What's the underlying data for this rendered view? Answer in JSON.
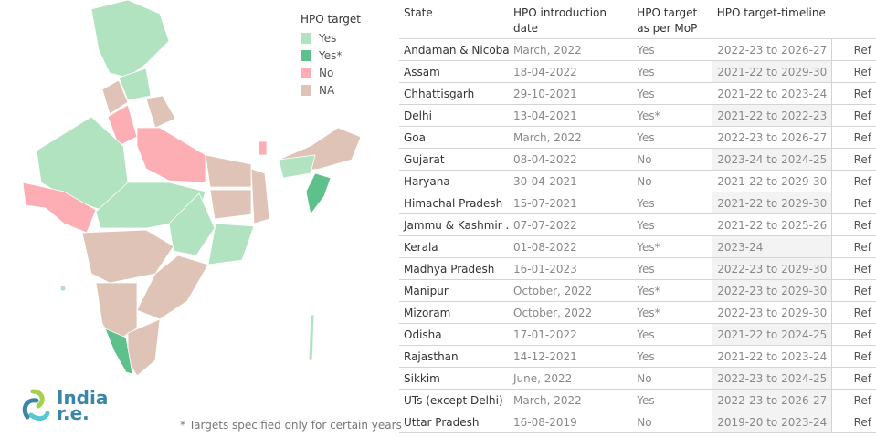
{
  "legend": {
    "title": "HPO target",
    "items": [
      {
        "label": "Yes",
        "color": "#b2e3c0"
      },
      {
        "label": "Yes*",
        "color": "#5ec08a"
      },
      {
        "label": "No",
        "color": "#fdadb4"
      },
      {
        "label": "NA",
        "color": "#dfc3b6"
      }
    ]
  },
  "footnote": "* Targets specified only for certain years",
  "logo": {
    "line1": "India",
    "line2": "r.e."
  },
  "table": {
    "headers": [
      "State",
      "HPO introduction date",
      "HPO target as per MoP",
      "HPO target-timeline",
      ""
    ],
    "rows": [
      {
        "state": "Andaman & Nicobar",
        "date": "March, 2022",
        "mop": "Yes",
        "timeline": "2022-23 to 2026-27",
        "ref": "Ref",
        "shaded": false
      },
      {
        "state": "Assam",
        "date": "18-04-2022",
        "mop": "Yes",
        "timeline": "2021-22 to 2029-30",
        "ref": "Ref",
        "shaded": true
      },
      {
        "state": "Chhattisgarh",
        "date": "29-10-2021",
        "mop": "Yes",
        "timeline": "2021-22 to 2023-24",
        "ref": "Ref",
        "shaded": false
      },
      {
        "state": "Delhi",
        "date": "13-04-2021",
        "mop": "Yes*",
        "timeline": "2021-22 to 2022-23",
        "ref": "Ref",
        "shaded": true
      },
      {
        "state": "Goa",
        "date": "March, 2022",
        "mop": "Yes",
        "timeline": "2022-23 to 2026-27",
        "ref": "Ref",
        "shaded": false
      },
      {
        "state": "Gujarat",
        "date": "08-04-2022",
        "mop": "No",
        "timeline": "2023-24 to 2024-25",
        "ref": "Ref",
        "shaded": true
      },
      {
        "state": "Haryana",
        "date": "30-04-2021",
        "mop": "No",
        "timeline": "2021-22 to 2029-30",
        "ref": "Ref",
        "shaded": false
      },
      {
        "state": "Himachal Pradesh",
        "date": "15-07-2021",
        "mop": "Yes",
        "timeline": "2021-22 to 2029-30",
        "ref": "Ref",
        "shaded": true
      },
      {
        "state": "Jammu & Kashmir ..",
        "date": "07-07-2022",
        "mop": "Yes",
        "timeline": "2021-22 to 2025-26",
        "ref": "Ref",
        "shaded": false
      },
      {
        "state": "Kerala",
        "date": "01-08-2022",
        "mop": "Yes*",
        "timeline": "2023-24",
        "ref": "Ref",
        "shaded": true
      },
      {
        "state": "Madhya Pradesh",
        "date": "16-01-2023",
        "mop": "Yes",
        "timeline": "2022-23 to 2029-30",
        "ref": "Ref",
        "shaded": true
      },
      {
        "state": "Manipur",
        "date": "October, 2022",
        "mop": "Yes*",
        "timeline": "2022-23 to 2029-30",
        "ref": "Ref",
        "shaded": true
      },
      {
        "state": "Mizoram",
        "date": "October, 2022",
        "mop": "Yes*",
        "timeline": "2022-23 to 2029-30",
        "ref": "Ref",
        "shaded": false
      },
      {
        "state": "Odisha",
        "date": "17-01-2022",
        "mop": "Yes",
        "timeline": "2021-22 to 2024-25",
        "ref": "Ref",
        "shaded": true
      },
      {
        "state": "Rajasthan",
        "date": "14-12-2021",
        "mop": "Yes",
        "timeline": "2021-22 to 2023-24",
        "ref": "Ref",
        "shaded": false
      },
      {
        "state": "Sikkim",
        "date": "June, 2022",
        "mop": "No",
        "timeline": "2022-23 to 2024-25",
        "ref": "Ref",
        "shaded": true
      },
      {
        "state": "UTs (except Delhi)",
        "date": "March, 2022",
        "mop": "Yes",
        "timeline": "2022-23 to 2026-27",
        "ref": "Ref",
        "shaded": true
      },
      {
        "state": "Uttar Pradesh",
        "date": "16-08-2019",
        "mop": "No",
        "timeline": "2019-20 to 2023-24",
        "ref": "Ref",
        "shaded": true
      }
    ]
  }
}
